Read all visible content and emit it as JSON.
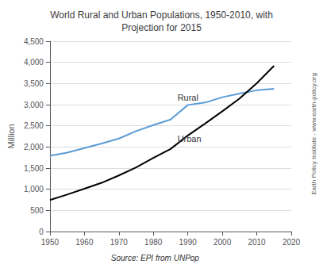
{
  "chart_data": {
    "type": "line",
    "title": "World Rural and Urban Populations, 1950-2010, with\nProjection for 2015",
    "y_label": "Million",
    "x": [
      1950,
      1955,
      1960,
      1965,
      1970,
      1975,
      1980,
      1985,
      1990,
      1995,
      2000,
      2005,
      2010,
      2015
    ],
    "series": [
      {
        "name": "Rural",
        "color": "#5b9bd5",
        "values": [
          1791,
          1867,
          1972,
          2082,
          2199,
          2374,
          2516,
          2649,
          2993,
          3050,
          3176,
          3263,
          3340,
          3374
        ]
      },
      {
        "name": "Urban",
        "color": "#000000",
        "values": [
          746,
          875,
          1012,
          1152,
          1327,
          1516,
          1741,
          1953,
          2272,
          2553,
          2843,
          3145,
          3507,
          3919
        ]
      }
    ],
    "annotations": [
      {
        "text": "Rural",
        "x": 1987,
        "y": 3060
      },
      {
        "text": "Urban",
        "x": 1987,
        "y": 2100
      }
    ],
    "source": "Source: EPI from UNPop",
    "watermark": "Earth Policy Institute - www.earth-policy.org",
    "xlim": [
      1950,
      2020
    ],
    "xticks": [
      1950,
      1960,
      1970,
      1980,
      1990,
      2000,
      2010,
      2020
    ],
    "ylim": [
      0,
      4500
    ],
    "yticks": [
      0,
      500,
      {
        "value": 1000,
        "label": "1,000"
      },
      {
        "value": 1500,
        "label": "1,500"
      },
      {
        "value": 2000,
        "label": "2,000"
      },
      {
        "value": 2500,
        "label": "2,500"
      },
      {
        "value": 3000,
        "label": "3,000"
      },
      {
        "value": 3500,
        "label": "3,500"
      },
      {
        "value": 4000,
        "label": "4,000"
      },
      {
        "value": 4500,
        "label": "4,500"
      }
    ],
    "grid": true
  }
}
